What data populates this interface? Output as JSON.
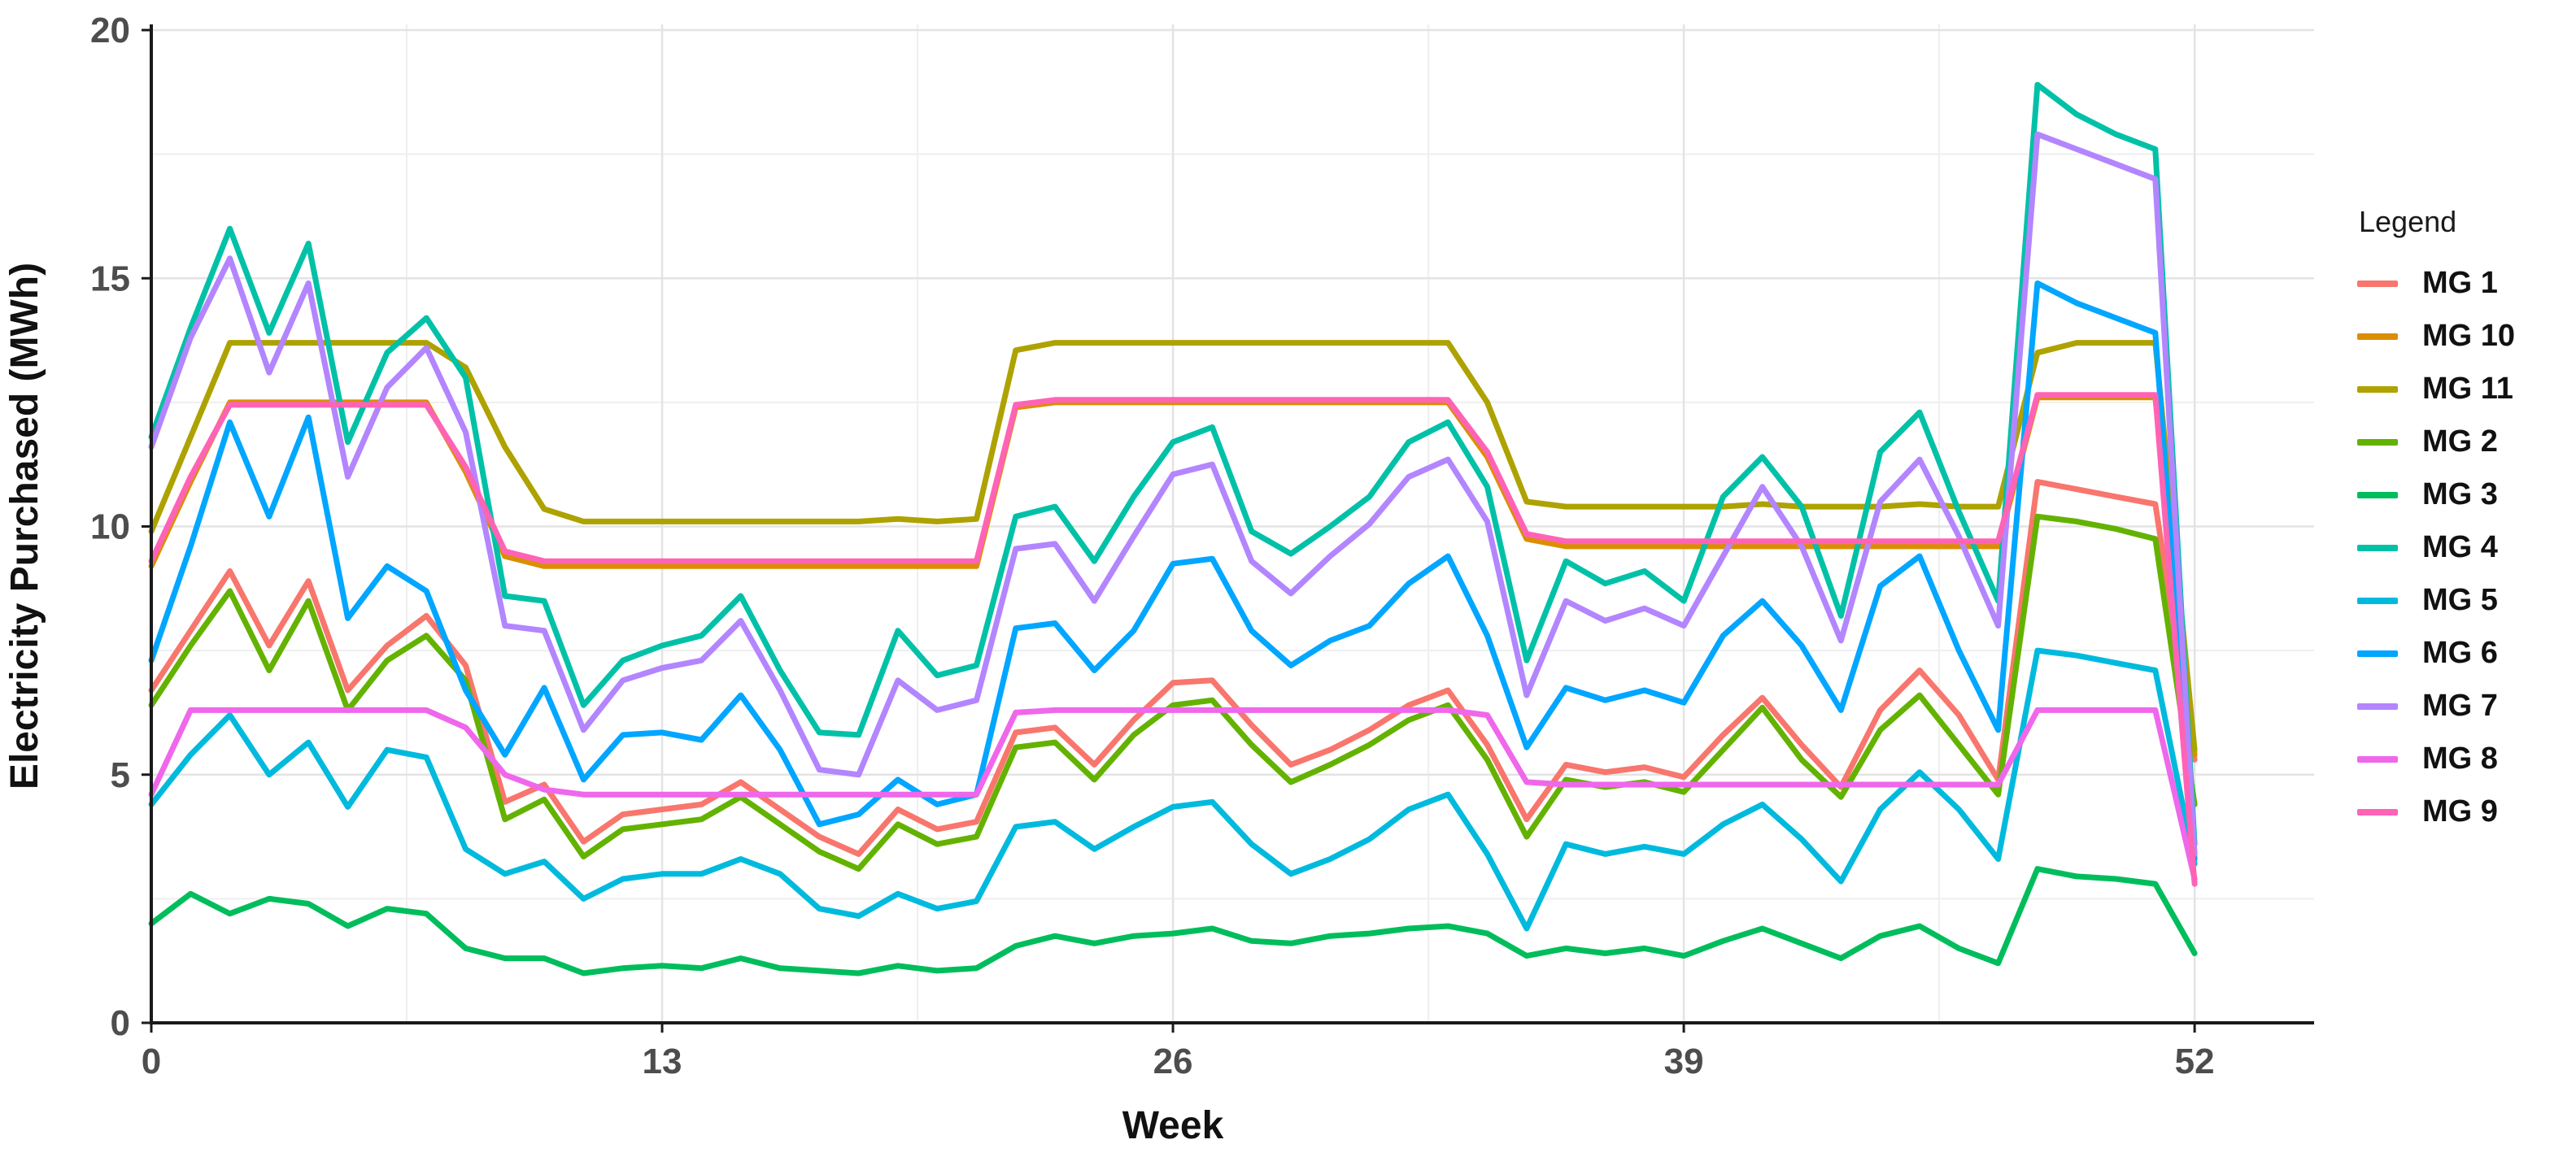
{
  "figure": {
    "kind": "line-chart-screenshot",
    "background": "#ffffff",
    "axis_color": "#1a1a1a",
    "grid_major_color": "#e3e3e3",
    "grid_minor_color": "#efefef",
    "tick_label_color": "#4d4d4d"
  },
  "legend": {
    "title": "Legend",
    "items": [
      {
        "label": "MG 1",
        "color": "#F8766D"
      },
      {
        "label": "MG 10",
        "color": "#DB8E00"
      },
      {
        "label": "MG 11",
        "color": "#AEA200"
      },
      {
        "label": "MG 2",
        "color": "#64B200"
      },
      {
        "label": "MG 3",
        "color": "#00BD5C"
      },
      {
        "label": "MG 4",
        "color": "#00C1A7"
      },
      {
        "label": "MG 5",
        "color": "#00BADE"
      },
      {
        "label": "MG 6",
        "color": "#00A6FF"
      },
      {
        "label": "MG 7",
        "color": "#B385FF"
      },
      {
        "label": "MG 8",
        "color": "#EF67EB"
      },
      {
        "label": "MG 9",
        "color": "#FF63B6"
      }
    ]
  },
  "chart_data": {
    "type": "line",
    "title": "",
    "xlabel": "Week",
    "ylabel": "Electricity Purchased (MWh)",
    "xlim": [
      0,
      52
    ],
    "ylim": [
      0,
      20
    ],
    "x_ticks": [
      0,
      13,
      26,
      39,
      52
    ],
    "x_minor": [
      6.5,
      19.5,
      32.5,
      45.5
    ],
    "y_ticks": [
      0,
      5,
      10,
      15,
      20
    ],
    "y_minor": [
      2.5,
      7.5,
      12.5,
      17.5
    ],
    "grid": true,
    "legend_position": "right",
    "x": [
      0,
      1,
      2,
      3,
      4,
      5,
      6,
      7,
      8,
      9,
      10,
      11,
      12,
      13,
      14,
      15,
      16,
      17,
      18,
      19,
      20,
      21,
      22,
      23,
      24,
      25,
      26,
      27,
      28,
      29,
      30,
      31,
      32,
      33,
      34,
      35,
      36,
      37,
      38,
      39,
      40,
      41,
      42,
      43,
      44,
      45,
      46,
      47,
      48,
      49,
      50,
      51,
      52
    ],
    "series": [
      {
        "name": "MG 1",
        "color": "#F8766D",
        "values": [
          6.7,
          7.9,
          9.1,
          7.6,
          8.9,
          6.7,
          7.6,
          8.2,
          7.2,
          4.45,
          4.8,
          3.65,
          4.2,
          4.3,
          4.4,
          4.85,
          4.3,
          3.75,
          3.4,
          4.3,
          3.9,
          4.05,
          5.85,
          5.95,
          5.2,
          6.1,
          6.85,
          6.9,
          6.0,
          5.2,
          5.5,
          5.9,
          6.4,
          6.7,
          5.6,
          4.1,
          5.2,
          5.05,
          5.15,
          4.95,
          5.8,
          6.55,
          5.6,
          4.75,
          6.3,
          7.1,
          6.2,
          4.9,
          10.9,
          10.75,
          10.6,
          10.45,
          5.3
        ]
      },
      {
        "name": "MG 10",
        "color": "#DB8E00",
        "values": [
          9.2,
          10.9,
          12.5,
          12.5,
          12.5,
          12.5,
          12.5,
          12.5,
          11.1,
          9.4,
          9.2,
          9.2,
          9.2,
          9.2,
          9.2,
          9.2,
          9.2,
          9.2,
          9.2,
          9.2,
          9.2,
          9.2,
          12.4,
          12.5,
          12.5,
          12.5,
          12.5,
          12.5,
          12.5,
          12.5,
          12.5,
          12.5,
          12.5,
          12.5,
          11.4,
          9.75,
          9.6,
          9.6,
          9.6,
          9.6,
          9.6,
          9.6,
          9.6,
          9.6,
          9.6,
          9.6,
          9.6,
          9.6,
          12.6,
          12.6,
          12.6,
          12.6,
          5.4
        ]
      },
      {
        "name": "MG 11",
        "color": "#AEA200",
        "values": [
          9.9,
          11.8,
          13.7,
          13.7,
          13.7,
          13.7,
          13.7,
          13.7,
          13.2,
          11.6,
          10.35,
          10.1,
          10.1,
          10.1,
          10.1,
          10.1,
          10.1,
          10.1,
          10.1,
          10.15,
          10.1,
          10.15,
          13.55,
          13.7,
          13.7,
          13.7,
          13.7,
          13.7,
          13.7,
          13.7,
          13.7,
          13.7,
          13.7,
          13.7,
          12.5,
          10.5,
          10.4,
          10.4,
          10.4,
          10.4,
          10.4,
          10.45,
          10.4,
          10.4,
          10.4,
          10.45,
          10.4,
          10.4,
          13.5,
          13.7,
          13.7,
          13.7,
          5.5
        ]
      },
      {
        "name": "MG 2",
        "color": "#64B200",
        "values": [
          6.4,
          7.6,
          8.7,
          7.1,
          8.5,
          6.3,
          7.3,
          7.8,
          6.9,
          4.1,
          4.5,
          3.35,
          3.9,
          4.0,
          4.1,
          4.55,
          4.0,
          3.45,
          3.1,
          4.0,
          3.6,
          3.75,
          5.55,
          5.65,
          4.9,
          5.8,
          6.4,
          6.5,
          5.6,
          4.85,
          5.2,
          5.6,
          6.1,
          6.4,
          5.3,
          3.75,
          4.9,
          4.75,
          4.85,
          4.65,
          5.5,
          6.35,
          5.3,
          4.55,
          5.9,
          6.6,
          5.6,
          4.6,
          10.2,
          10.1,
          9.95,
          9.75,
          4.4
        ]
      },
      {
        "name": "MG 3",
        "color": "#00BD5C",
        "values": [
          2.0,
          2.6,
          2.2,
          2.5,
          2.4,
          1.95,
          2.3,
          2.2,
          1.5,
          1.3,
          1.3,
          1.0,
          1.1,
          1.15,
          1.1,
          1.3,
          1.1,
          1.05,
          1.0,
          1.15,
          1.05,
          1.1,
          1.55,
          1.75,
          1.6,
          1.75,
          1.8,
          1.9,
          1.65,
          1.6,
          1.75,
          1.8,
          1.9,
          1.95,
          1.8,
          1.35,
          1.5,
          1.4,
          1.5,
          1.35,
          1.65,
          1.9,
          1.6,
          1.3,
          1.75,
          1.95,
          1.5,
          1.2,
          3.1,
          2.95,
          2.9,
          2.8,
          1.4
        ]
      },
      {
        "name": "MG 4",
        "color": "#00C1A7",
        "values": [
          11.8,
          14.0,
          16.0,
          13.9,
          15.7,
          11.7,
          13.5,
          14.2,
          13.0,
          8.6,
          8.5,
          6.4,
          7.3,
          7.6,
          7.8,
          8.6,
          7.1,
          5.85,
          5.8,
          7.9,
          7.0,
          7.2,
          10.2,
          10.4,
          9.3,
          10.6,
          11.7,
          12.0,
          9.9,
          9.45,
          10.0,
          10.6,
          11.7,
          12.1,
          10.8,
          7.3,
          9.3,
          8.85,
          9.1,
          8.5,
          10.6,
          11.4,
          10.4,
          8.2,
          11.5,
          12.3,
          10.3,
          8.5,
          18.9,
          18.3,
          17.9,
          17.6,
          3.6
        ]
      },
      {
        "name": "MG 5",
        "color": "#00BADE",
        "values": [
          4.4,
          5.4,
          6.2,
          5.0,
          5.65,
          4.35,
          5.5,
          5.35,
          3.5,
          3.0,
          3.25,
          2.5,
          2.9,
          3.0,
          3.0,
          3.3,
          3.0,
          2.3,
          2.15,
          2.6,
          2.3,
          2.45,
          3.95,
          4.05,
          3.5,
          3.95,
          4.35,
          4.45,
          3.6,
          3.0,
          3.3,
          3.7,
          4.3,
          4.6,
          3.4,
          1.9,
          3.6,
          3.4,
          3.55,
          3.4,
          4.0,
          4.4,
          3.7,
          2.85,
          4.3,
          5.05,
          4.3,
          3.3,
          7.5,
          7.4,
          7.25,
          7.1,
          3.2
        ]
      },
      {
        "name": "MG 6",
        "color": "#00A6FF",
        "values": [
          7.3,
          9.6,
          12.1,
          10.2,
          12.2,
          8.15,
          9.2,
          8.7,
          6.7,
          5.4,
          6.75,
          4.9,
          5.8,
          5.85,
          5.7,
          6.6,
          5.5,
          4.0,
          4.2,
          4.9,
          4.4,
          4.6,
          7.95,
          8.05,
          7.1,
          7.9,
          9.25,
          9.35,
          7.9,
          7.2,
          7.7,
          8.0,
          8.85,
          9.4,
          7.8,
          5.55,
          6.75,
          6.5,
          6.7,
          6.45,
          7.8,
          8.5,
          7.6,
          6.3,
          8.8,
          9.4,
          7.5,
          5.9,
          14.9,
          14.5,
          14.2,
          13.9,
          3.3
        ]
      },
      {
        "name": "MG 7",
        "color": "#B385FF",
        "values": [
          11.6,
          13.8,
          15.4,
          13.1,
          14.9,
          11.0,
          12.8,
          13.6,
          11.9,
          8.0,
          7.9,
          5.9,
          6.9,
          7.15,
          7.3,
          8.1,
          6.7,
          5.1,
          5.0,
          6.9,
          6.3,
          6.5,
          9.55,
          9.65,
          8.5,
          9.8,
          11.05,
          11.25,
          9.3,
          8.65,
          9.4,
          10.05,
          11.0,
          11.35,
          10.1,
          6.6,
          8.5,
          8.1,
          8.35,
          8.0,
          9.4,
          10.8,
          9.6,
          7.7,
          10.5,
          11.35,
          9.8,
          8.0,
          17.9,
          17.6,
          17.3,
          17.0,
          3.4
        ]
      },
      {
        "name": "MG 8",
        "color": "#EF67EB",
        "values": [
          4.6,
          6.3,
          6.3,
          6.3,
          6.3,
          6.3,
          6.3,
          6.3,
          5.95,
          5.0,
          4.7,
          4.6,
          4.6,
          4.6,
          4.6,
          4.6,
          4.6,
          4.6,
          4.6,
          4.6,
          4.6,
          4.6,
          6.25,
          6.3,
          6.3,
          6.3,
          6.3,
          6.3,
          6.3,
          6.3,
          6.3,
          6.3,
          6.3,
          6.3,
          6.2,
          4.85,
          4.8,
          4.8,
          4.8,
          4.8,
          4.8,
          4.8,
          4.8,
          4.8,
          4.8,
          4.8,
          4.8,
          4.8,
          6.3,
          6.3,
          6.3,
          6.3,
          2.9
        ]
      },
      {
        "name": "MG 9",
        "color": "#FF63B6",
        "values": [
          9.3,
          11.0,
          12.45,
          12.45,
          12.45,
          12.45,
          12.45,
          12.45,
          11.2,
          9.5,
          9.3,
          9.3,
          9.3,
          9.3,
          9.3,
          9.3,
          9.3,
          9.3,
          9.3,
          9.3,
          9.3,
          9.3,
          12.45,
          12.55,
          12.55,
          12.55,
          12.55,
          12.55,
          12.55,
          12.55,
          12.55,
          12.55,
          12.55,
          12.55,
          11.5,
          9.85,
          9.7,
          9.7,
          9.7,
          9.7,
          9.7,
          9.7,
          9.7,
          9.7,
          9.7,
          9.7,
          9.7,
          9.7,
          12.65,
          12.65,
          12.65,
          12.65,
          2.8
        ]
      }
    ]
  }
}
